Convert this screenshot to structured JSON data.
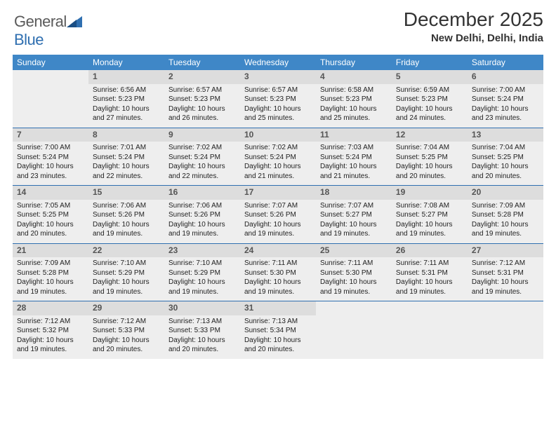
{
  "logo": {
    "word1": "General",
    "word2": "Blue"
  },
  "title": "December 2025",
  "subtitle": "New Delhi, Delhi, India",
  "colors": {
    "header_bg": "#3f87c7",
    "header_text": "#ffffff",
    "daynum_bg": "#dddddd",
    "cell_bg": "#eeeeee",
    "row_divider": "#2f6fb0",
    "logo_gray": "#5a5a5a",
    "logo_blue": "#2f6fb0",
    "title_color": "#333333"
  },
  "layout": {
    "columns": 7,
    "rows": 5,
    "first_day_column_index": 1
  },
  "days_of_week": [
    "Sunday",
    "Monday",
    "Tuesday",
    "Wednesday",
    "Thursday",
    "Friday",
    "Saturday"
  ],
  "days": [
    {
      "n": "1",
      "sunrise": "Sunrise: 6:56 AM",
      "sunset": "Sunset: 5:23 PM",
      "daylight": "Daylight: 10 hours and 27 minutes."
    },
    {
      "n": "2",
      "sunrise": "Sunrise: 6:57 AM",
      "sunset": "Sunset: 5:23 PM",
      "daylight": "Daylight: 10 hours and 26 minutes."
    },
    {
      "n": "3",
      "sunrise": "Sunrise: 6:57 AM",
      "sunset": "Sunset: 5:23 PM",
      "daylight": "Daylight: 10 hours and 25 minutes."
    },
    {
      "n": "4",
      "sunrise": "Sunrise: 6:58 AM",
      "sunset": "Sunset: 5:23 PM",
      "daylight": "Daylight: 10 hours and 25 minutes."
    },
    {
      "n": "5",
      "sunrise": "Sunrise: 6:59 AM",
      "sunset": "Sunset: 5:23 PM",
      "daylight": "Daylight: 10 hours and 24 minutes."
    },
    {
      "n": "6",
      "sunrise": "Sunrise: 7:00 AM",
      "sunset": "Sunset: 5:24 PM",
      "daylight": "Daylight: 10 hours and 23 minutes."
    },
    {
      "n": "7",
      "sunrise": "Sunrise: 7:00 AM",
      "sunset": "Sunset: 5:24 PM",
      "daylight": "Daylight: 10 hours and 23 minutes."
    },
    {
      "n": "8",
      "sunrise": "Sunrise: 7:01 AM",
      "sunset": "Sunset: 5:24 PM",
      "daylight": "Daylight: 10 hours and 22 minutes."
    },
    {
      "n": "9",
      "sunrise": "Sunrise: 7:02 AM",
      "sunset": "Sunset: 5:24 PM",
      "daylight": "Daylight: 10 hours and 22 minutes."
    },
    {
      "n": "10",
      "sunrise": "Sunrise: 7:02 AM",
      "sunset": "Sunset: 5:24 PM",
      "daylight": "Daylight: 10 hours and 21 minutes."
    },
    {
      "n": "11",
      "sunrise": "Sunrise: 7:03 AM",
      "sunset": "Sunset: 5:24 PM",
      "daylight": "Daylight: 10 hours and 21 minutes."
    },
    {
      "n": "12",
      "sunrise": "Sunrise: 7:04 AM",
      "sunset": "Sunset: 5:25 PM",
      "daylight": "Daylight: 10 hours and 20 minutes."
    },
    {
      "n": "13",
      "sunrise": "Sunrise: 7:04 AM",
      "sunset": "Sunset: 5:25 PM",
      "daylight": "Daylight: 10 hours and 20 minutes."
    },
    {
      "n": "14",
      "sunrise": "Sunrise: 7:05 AM",
      "sunset": "Sunset: 5:25 PM",
      "daylight": "Daylight: 10 hours and 20 minutes."
    },
    {
      "n": "15",
      "sunrise": "Sunrise: 7:06 AM",
      "sunset": "Sunset: 5:26 PM",
      "daylight": "Daylight: 10 hours and 19 minutes."
    },
    {
      "n": "16",
      "sunrise": "Sunrise: 7:06 AM",
      "sunset": "Sunset: 5:26 PM",
      "daylight": "Daylight: 10 hours and 19 minutes."
    },
    {
      "n": "17",
      "sunrise": "Sunrise: 7:07 AM",
      "sunset": "Sunset: 5:26 PM",
      "daylight": "Daylight: 10 hours and 19 minutes."
    },
    {
      "n": "18",
      "sunrise": "Sunrise: 7:07 AM",
      "sunset": "Sunset: 5:27 PM",
      "daylight": "Daylight: 10 hours and 19 minutes."
    },
    {
      "n": "19",
      "sunrise": "Sunrise: 7:08 AM",
      "sunset": "Sunset: 5:27 PM",
      "daylight": "Daylight: 10 hours and 19 minutes."
    },
    {
      "n": "20",
      "sunrise": "Sunrise: 7:09 AM",
      "sunset": "Sunset: 5:28 PM",
      "daylight": "Daylight: 10 hours and 19 minutes."
    },
    {
      "n": "21",
      "sunrise": "Sunrise: 7:09 AM",
      "sunset": "Sunset: 5:28 PM",
      "daylight": "Daylight: 10 hours and 19 minutes."
    },
    {
      "n": "22",
      "sunrise": "Sunrise: 7:10 AM",
      "sunset": "Sunset: 5:29 PM",
      "daylight": "Daylight: 10 hours and 19 minutes."
    },
    {
      "n": "23",
      "sunrise": "Sunrise: 7:10 AM",
      "sunset": "Sunset: 5:29 PM",
      "daylight": "Daylight: 10 hours and 19 minutes."
    },
    {
      "n": "24",
      "sunrise": "Sunrise: 7:11 AM",
      "sunset": "Sunset: 5:30 PM",
      "daylight": "Daylight: 10 hours and 19 minutes."
    },
    {
      "n": "25",
      "sunrise": "Sunrise: 7:11 AM",
      "sunset": "Sunset: 5:30 PM",
      "daylight": "Daylight: 10 hours and 19 minutes."
    },
    {
      "n": "26",
      "sunrise": "Sunrise: 7:11 AM",
      "sunset": "Sunset: 5:31 PM",
      "daylight": "Daylight: 10 hours and 19 minutes."
    },
    {
      "n": "27",
      "sunrise": "Sunrise: 7:12 AM",
      "sunset": "Sunset: 5:31 PM",
      "daylight": "Daylight: 10 hours and 19 minutes."
    },
    {
      "n": "28",
      "sunrise": "Sunrise: 7:12 AM",
      "sunset": "Sunset: 5:32 PM",
      "daylight": "Daylight: 10 hours and 19 minutes."
    },
    {
      "n": "29",
      "sunrise": "Sunrise: 7:12 AM",
      "sunset": "Sunset: 5:33 PM",
      "daylight": "Daylight: 10 hours and 20 minutes."
    },
    {
      "n": "30",
      "sunrise": "Sunrise: 7:13 AM",
      "sunset": "Sunset: 5:33 PM",
      "daylight": "Daylight: 10 hours and 20 minutes."
    },
    {
      "n": "31",
      "sunrise": "Sunrise: 7:13 AM",
      "sunset": "Sunset: 5:34 PM",
      "daylight": "Daylight: 10 hours and 20 minutes."
    }
  ]
}
